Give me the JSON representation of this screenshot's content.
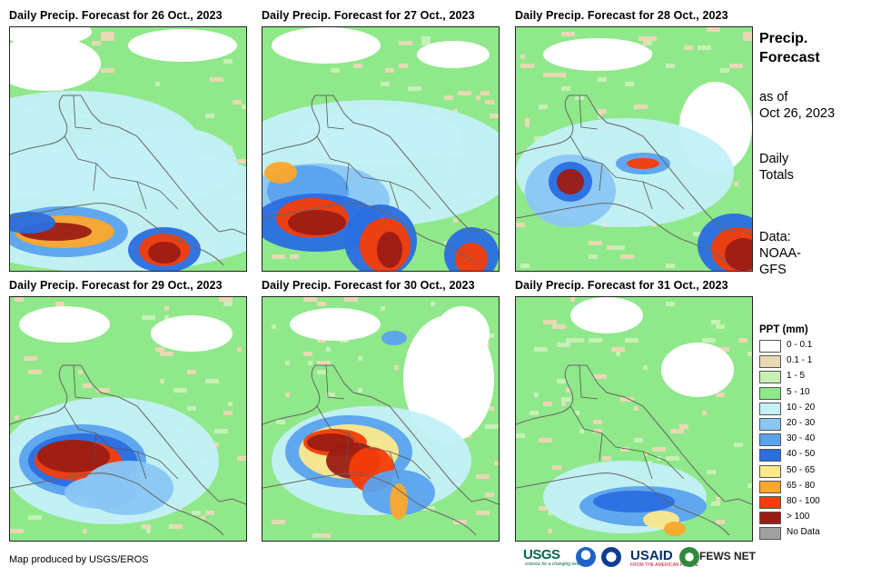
{
  "panels": [
    {
      "title": "Daily Precip. Forecast for 26 Oct., 2023"
    },
    {
      "title": "Daily Precip. Forecast for 27 Oct., 2023"
    },
    {
      "title": "Daily Precip. Forecast for 28 Oct., 2023"
    },
    {
      "title": "Daily Precip. Forecast for 29 Oct., 2023"
    },
    {
      "title": "Daily Precip. Forecast for 30 Oct., 2023"
    },
    {
      "title": "Daily Precip. Forecast for 31 Oct., 2023"
    }
  ],
  "side": {
    "title_line1": "Precip.",
    "title_line2": "Forecast",
    "asof_line1": "as of",
    "asof_line2": "Oct 26, 2023",
    "totals_line1": "Daily",
    "totals_line2": "Totals",
    "data_line1": "Data:",
    "data_line2": "NOAA-",
    "data_line3": "GFS"
  },
  "legend": {
    "title": "PPT (mm)",
    "items": [
      {
        "label": "0 - 0.1",
        "color": "#ffffff"
      },
      {
        "label": "0.1 - 1",
        "color": "#e8d8b4"
      },
      {
        "label": "1 - 5",
        "color": "#c6f0b4"
      },
      {
        "label": "5 - 10",
        "color": "#8fe88a"
      },
      {
        "label": "10 - 20",
        "color": "#c4f0f8"
      },
      {
        "label": "20 - 30",
        "color": "#8ac6f4"
      },
      {
        "label": "30 - 40",
        "color": "#5aa2ee"
      },
      {
        "label": "40 - 50",
        "color": "#2a6ee0"
      },
      {
        "label": "50 - 65",
        "color": "#fce88a"
      },
      {
        "label": "65 - 80",
        "color": "#fca82a"
      },
      {
        "label": "80 - 100",
        "color": "#f63c08"
      },
      {
        "label": "> 100",
        "color": "#9c1c14"
      },
      {
        "label": "No Data",
        "color": "#a0a0a0"
      }
    ]
  },
  "footer": {
    "credit": "Map produced by USGS/EROS",
    "logo_usgs": "USGS",
    "logo_usgs_tagline": "science for a changing world",
    "logo_usaid": "USAID",
    "logo_usaid_tagline": "FROM THE AMERICAN PEOPLE",
    "logo_fews": "FEWS NET"
  }
}
